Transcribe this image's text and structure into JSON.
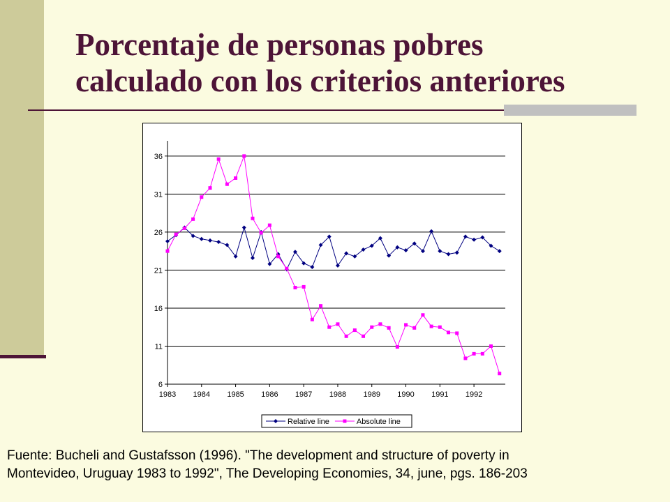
{
  "slide": {
    "title_line1": "Porcentaje de personas pobres",
    "title_line2": "calculado con los criterios anteriores",
    "source_line1": "Fuente: Bucheli and Gustafsson (1996). \"The development and structure of poverty in",
    "source_line2": "Montevideo, Uruguay 1983 to 1992\", The Developing Economies, 34, june, pgs. 186-203",
    "colors": {
      "background": "#fbfbe0",
      "accent_bar": "#cdcb9a",
      "title": "#4d1437",
      "rule_accent": "#c0c0c0"
    }
  },
  "chart_data": {
    "type": "line",
    "x_ticks": [
      "1983",
      "1984",
      "1985",
      "1986",
      "1987",
      "1988",
      "1989",
      "1990",
      "1991",
      "1992"
    ],
    "y_ticks": [
      6,
      11,
      16,
      21,
      26,
      31,
      36
    ],
    "ylim": [
      6,
      38
    ],
    "xlim": [
      1983,
      1992.92
    ],
    "grid": "horizontal",
    "legend_position": "bottom",
    "series": [
      {
        "name": "Relative line",
        "color": "#000080",
        "marker": "diamond",
        "x": [
          1983,
          1983.25,
          1983.5,
          1983.75,
          1984,
          1984.25,
          1984.5,
          1984.75,
          1985,
          1985.25,
          1985.5,
          1985.75,
          1986,
          1986.25,
          1986.5,
          1986.75,
          1987,
          1987.25,
          1987.5,
          1987.75,
          1988,
          1988.25,
          1988.5,
          1988.75,
          1989,
          1989.25,
          1989.5,
          1989.75,
          1990,
          1990.25,
          1990.5,
          1990.75,
          1991,
          1991.25,
          1991.5,
          1991.75,
          1992,
          1992.25,
          1992.5,
          1992.75
        ],
        "values": [
          24.8,
          25.6,
          26.6,
          25.5,
          25.1,
          24.9,
          24.7,
          24.3,
          22.8,
          26.6,
          22.6,
          26.0,
          21.8,
          23.1,
          21.1,
          23.4,
          21.9,
          21.4,
          24.3,
          25.4,
          21.6,
          23.2,
          22.8,
          23.7,
          24.2,
          25.2,
          22.9,
          24.0,
          23.6,
          24.5,
          23.5,
          26.1,
          23.5,
          23.1,
          23.3,
          25.4,
          25.0,
          25.3,
          24.2,
          23.5
        ]
      },
      {
        "name": "Absolute line",
        "color": "#ff00ff",
        "marker": "square",
        "x": [
          1983,
          1983.25,
          1983.5,
          1983.75,
          1984,
          1984.25,
          1984.5,
          1984.75,
          1985,
          1985.25,
          1985.5,
          1985.75,
          1986,
          1986.25,
          1986.5,
          1986.75,
          1987,
          1987.25,
          1987.5,
          1987.75,
          1988,
          1988.25,
          1988.5,
          1988.75,
          1989,
          1989.25,
          1989.5,
          1989.75,
          1990,
          1990.25,
          1990.5,
          1990.75,
          1991,
          1991.25,
          1991.5,
          1991.75,
          1992,
          1992.25,
          1992.5,
          1992.75
        ],
        "values": [
          23.5,
          25.7,
          26.5,
          27.7,
          30.6,
          31.8,
          35.6,
          32.3,
          33.1,
          36.0,
          27.8,
          25.9,
          26.9,
          22.8,
          21.2,
          18.7,
          18.8,
          14.5,
          16.3,
          13.5,
          13.9,
          12.3,
          13.1,
          12.3,
          13.5,
          13.9,
          13.4,
          10.9,
          13.8,
          13.4,
          15.1,
          13.6,
          13.5,
          12.8,
          12.7,
          9.4,
          10.0,
          10.0,
          11.0,
          7.4
        ]
      }
    ]
  }
}
